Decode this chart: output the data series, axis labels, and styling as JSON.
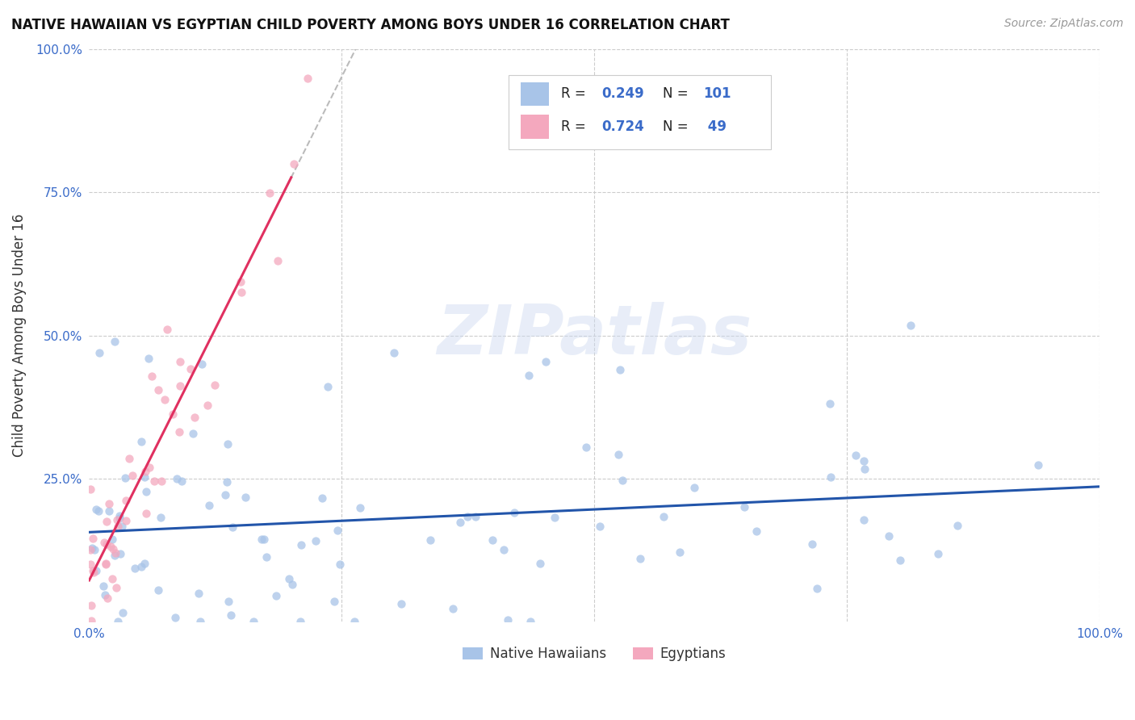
{
  "title": "NATIVE HAWAIIAN VS EGYPTIAN CHILD POVERTY AMONG BOYS UNDER 16 CORRELATION CHART",
  "source": "Source: ZipAtlas.com",
  "ylabel": "Child Poverty Among Boys Under 16",
  "watermark": "ZIPatlas",
  "blue_R": 0.249,
  "blue_N": 101,
  "pink_R": 0.724,
  "pink_N": 49,
  "blue_color": "#a8c4e8",
  "pink_color": "#f4a8be",
  "blue_line_color": "#2255aa",
  "pink_line_color": "#e03060",
  "legend_label_blue": "Native Hawaiians",
  "legend_label_pink": "Egyptians",
  "title_fontsize": 12,
  "source_fontsize": 10,
  "tick_fontsize": 11,
  "ylabel_fontsize": 12
}
